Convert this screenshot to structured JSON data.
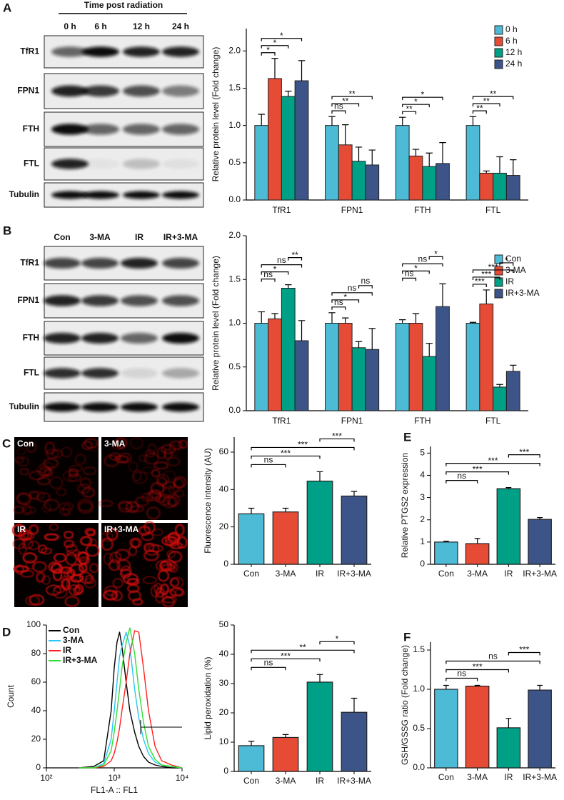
{
  "blots": [
    {
      "letter": "A",
      "header": "Time post radiation",
      "lanes": [
        "0 h",
        "6 h",
        "12 h",
        "24 h"
      ],
      "rows": [
        "TfR1",
        "FPN1",
        "FTH",
        "FTL",
        "Tubulin"
      ]
    },
    {
      "letter": "B",
      "lanes": [
        "Con",
        "3-MA",
        "IR",
        "IR+3-MA"
      ],
      "rows": [
        "TfR1",
        "FPN1",
        "FTH",
        "FTL",
        "Tubulin"
      ]
    }
  ],
  "micrographs": {
    "letter": "C",
    "labels": [
      "Con",
      "3-MA",
      "IR",
      "IR+3-MA"
    ]
  },
  "chart_data": [
    {
      "type": "grouped_bar",
      "ylabel": "Relative protein level (Fold change)",
      "categories": [
        "TfR1",
        "FPN1",
        "FTH",
        "FTL"
      ],
      "series": [
        {
          "name": "0 h",
          "color": "#4dbbd5",
          "values": [
            1.0,
            1.0,
            1.0,
            1.0
          ],
          "errors": [
            0.15,
            0.12,
            0.11,
            0.12
          ]
        },
        {
          "name": "6 h",
          "color": "#e64b35",
          "values": [
            1.63,
            0.74,
            0.59,
            0.36
          ],
          "errors": [
            0.27,
            0.27,
            0.09,
            0.03
          ]
        },
        {
          "name": "12 h",
          "color": "#00a087",
          "values": [
            1.39,
            0.52,
            0.45,
            0.36
          ],
          "errors": [
            0.07,
            0.19,
            0.18,
            0.22
          ]
        },
        {
          "name": "24 h",
          "color": "#3c5488",
          "values": [
            1.6,
            0.47,
            0.49,
            0.33
          ],
          "errors": [
            0.27,
            0.2,
            0.28,
            0.21
          ]
        }
      ],
      "ylim": [
        0,
        2.3
      ],
      "yticks": [
        {
          "value": 0,
          "label": "0.0"
        },
        {
          "value": 0.5,
          "label": "0.5"
        },
        {
          "value": 1,
          "label": "1.0"
        },
        {
          "value": 1.5,
          "label": "1.5"
        },
        {
          "value": 2,
          "label": "2.0"
        }
      ],
      "significance": [
        {
          "group": 0,
          "pair": [
            0,
            1
          ],
          "label": "*"
        },
        {
          "group": 0,
          "pair": [
            0,
            2
          ],
          "label": "*"
        },
        {
          "group": 0,
          "pair": [
            0,
            3
          ],
          "label": "*"
        },
        {
          "group": 1,
          "pair": [
            0,
            1
          ],
          "label": "ns"
        },
        {
          "group": 1,
          "pair": [
            0,
            2
          ],
          "label": "**"
        },
        {
          "group": 1,
          "pair": [
            0,
            3
          ],
          "label": "**"
        },
        {
          "group": 2,
          "pair": [
            0,
            1
          ],
          "label": "**"
        },
        {
          "group": 2,
          "pair": [
            0,
            2
          ],
          "label": "*"
        },
        {
          "group": 2,
          "pair": [
            0,
            3
          ],
          "label": "*"
        },
        {
          "group": 3,
          "pair": [
            0,
            1
          ],
          "label": "**"
        },
        {
          "group": 3,
          "pair": [
            0,
            2
          ],
          "label": "**"
        },
        {
          "group": 3,
          "pair": [
            0,
            3
          ],
          "label": "**"
        }
      ]
    },
    {
      "type": "grouped_bar",
      "ylabel": "Relative protein level (Fold change)",
      "categories": [
        "TfR1",
        "FPN1",
        "FTH",
        "FTL"
      ],
      "series": [
        {
          "name": "Con",
          "color": "#4dbbd5",
          "values": [
            1.0,
            1.0,
            1.0,
            1.0
          ],
          "errors": [
            0.13,
            0.12,
            0.04,
            0.01
          ]
        },
        {
          "name": "3-MA",
          "color": "#e64b35",
          "values": [
            1.05,
            1.0,
            1.0,
            1.22
          ],
          "errors": [
            0.06,
            0.06,
            0.11,
            0.16
          ]
        },
        {
          "name": "IR",
          "color": "#00a087",
          "values": [
            1.4,
            0.72,
            0.62,
            0.27
          ],
          "errors": [
            0.04,
            0.07,
            0.15,
            0.03
          ]
        },
        {
          "name": "IR+3-MA",
          "color": "#3c5488",
          "values": [
            0.8,
            0.7,
            1.19,
            0.45
          ],
          "errors": [
            0.23,
            0.24,
            0.26,
            0.07
          ]
        }
      ],
      "ylim": [
        0,
        2.0
      ],
      "yticks": [
        {
          "value": 0,
          "label": "0.0"
        },
        {
          "value": 0.5,
          "label": "0.5"
        },
        {
          "value": 1,
          "label": "1.0"
        },
        {
          "value": 1.5,
          "label": "1.5"
        },
        {
          "value": 2,
          "label": "2.0"
        }
      ],
      "significance": [
        {
          "group": 0,
          "pair": [
            0,
            1
          ],
          "label": "ns"
        },
        {
          "group": 0,
          "pair": [
            0,
            2
          ],
          "label": "*"
        },
        {
          "group": 0,
          "pair": [
            0,
            3
          ],
          "label": "ns"
        },
        {
          "group": 0,
          "pair": [
            2,
            3
          ],
          "label": "**"
        },
        {
          "group": 1,
          "pair": [
            0,
            1
          ],
          "label": "ns"
        },
        {
          "group": 1,
          "pair": [
            0,
            2
          ],
          "label": "*"
        },
        {
          "group": 1,
          "pair": [
            0,
            3
          ],
          "label": "ns"
        },
        {
          "group": 1,
          "pair": [
            2,
            3
          ],
          "label": "ns"
        },
        {
          "group": 2,
          "pair": [
            0,
            1
          ],
          "label": "ns"
        },
        {
          "group": 2,
          "pair": [
            0,
            2
          ],
          "label": "*"
        },
        {
          "group": 2,
          "pair": [
            0,
            3
          ],
          "label": "ns"
        },
        {
          "group": 2,
          "pair": [
            2,
            3
          ],
          "label": "*"
        },
        {
          "group": 3,
          "pair": [
            0,
            1
          ],
          "label": "***"
        },
        {
          "group": 3,
          "pair": [
            0,
            2
          ],
          "label": "***"
        },
        {
          "group": 3,
          "pair": [
            0,
            3
          ],
          "label": "***"
        },
        {
          "group": 3,
          "pair": [
            2,
            3
          ],
          "label": "*"
        }
      ]
    },
    {
      "type": "bar",
      "ylabel": "Fluorescence intensity (AU)",
      "categories": [
        "Con",
        "3-MA",
        "IR",
        "IR+3-MA"
      ],
      "values": [
        27,
        28,
        44.5,
        36.5
      ],
      "errors": [
        3,
        2,
        5,
        2.5
      ],
      "colors": [
        "#4dbbd5",
        "#e64b35",
        "#00a087",
        "#3c5488"
      ],
      "ylim": [
        0,
        68
      ],
      "yticks": [
        0,
        20,
        40,
        60
      ],
      "significance": [
        {
          "pair": [
            0,
            1
          ],
          "label": "ns"
        },
        {
          "pair": [
            0,
            2
          ],
          "label": "***"
        },
        {
          "pair": [
            0,
            3
          ],
          "label": "***"
        },
        {
          "pair": [
            2,
            3
          ],
          "label": "***"
        }
      ]
    },
    {
      "type": "bar",
      "letter": "E",
      "ylabel": "Relative PTGS2 expression",
      "categories": [
        "Con",
        "3-MA",
        "IR",
        "IR+3-MA"
      ],
      "values": [
        1.0,
        0.93,
        3.4,
        2.02
      ],
      "errors": [
        0.04,
        0.23,
        0.05,
        0.08
      ],
      "colors": [
        "#4dbbd5",
        "#e64b35",
        "#00a087",
        "#3c5488"
      ],
      "ylim": [
        0,
        5.3
      ],
      "yticks": [
        0,
        1,
        2,
        3,
        4,
        5
      ],
      "significance": [
        {
          "pair": [
            0,
            1
          ],
          "label": "ns"
        },
        {
          "pair": [
            0,
            2
          ],
          "label": "***"
        },
        {
          "pair": [
            0,
            3
          ],
          "label": "***"
        },
        {
          "pair": [
            2,
            3
          ],
          "label": "***"
        }
      ]
    },
    {
      "type": "line",
      "letter": "D",
      "xlabel": "FL1-A :: FL1",
      "ylabel": "Count",
      "xscale": "log",
      "xlim": [
        100,
        10000
      ],
      "xticks": [
        {
          "value": 100,
          "label": "10²"
        },
        {
          "value": 1000,
          "label": "10³"
        },
        {
          "value": 10000,
          "label": "10⁴"
        }
      ],
      "ylim": [
        0,
        100
      ],
      "yticks": [
        0,
        20,
        40,
        60,
        80,
        100
      ],
      "x": [
        300,
        500,
        700,
        900,
        1000,
        1100,
        1200,
        1300,
        1500,
        1700,
        2000,
        2300,
        2700,
        3200,
        4000,
        5000,
        7000,
        10000
      ],
      "series": [
        {
          "name": "Con",
          "color": "#000000",
          "values": [
            0,
            1,
            5,
            40,
            70,
            88,
            95,
            85,
            60,
            40,
            25,
            15,
            8,
            4,
            2,
            1,
            0,
            0
          ]
        },
        {
          "name": "3-MA",
          "color": "#29c5f6",
          "values": [
            0,
            0,
            3,
            20,
            40,
            60,
            78,
            85,
            95,
            85,
            55,
            35,
            20,
            10,
            4,
            2,
            1,
            0
          ]
        },
        {
          "name": "IR",
          "color": "#ff2020",
          "values": [
            0,
            0,
            1,
            5,
            10,
            18,
            28,
            40,
            60,
            80,
            96,
            95,
            70,
            40,
            15,
            5,
            2,
            0
          ]
        },
        {
          "name": "IR+3-MA",
          "color": "#33dd33",
          "values": [
            0,
            0,
            2,
            12,
            25,
            40,
            55,
            70,
            88,
            98,
            80,
            55,
            32,
            15,
            6,
            2,
            1,
            0
          ]
        }
      ]
    },
    {
      "type": "bar",
      "ylabel": "Lipid peroxidation (%)",
      "categories": [
        "Con",
        "3-MA",
        "IR",
        "IR+3-MA"
      ],
      "values": [
        8.8,
        11.6,
        30.5,
        20.2
      ],
      "errors": [
        1.5,
        1.0,
        2.6,
        4.8
      ],
      "colors": [
        "#4dbbd5",
        "#e64b35",
        "#00a087",
        "#3c5488"
      ],
      "ylim": [
        0,
        50
      ],
      "yticks": [
        0,
        10,
        20,
        30,
        40,
        50
      ],
      "significance": [
        {
          "pair": [
            0,
            1
          ],
          "label": "ns"
        },
        {
          "pair": [
            0,
            2
          ],
          "label": "***"
        },
        {
          "pair": [
            0,
            3
          ],
          "label": "**"
        },
        {
          "pair": [
            2,
            3
          ],
          "label": "*"
        }
      ]
    },
    {
      "type": "bar",
      "letter": "F",
      "ylabel": "GSH/GSSG ratio (Fold change)",
      "categories": [
        "Con",
        "3-MA",
        "IR",
        "IR+3-MA"
      ],
      "values": [
        1.0,
        1.04,
        0.51,
        0.99
      ],
      "errors": [
        0.05,
        0.01,
        0.12,
        0.06
      ],
      "colors": [
        "#4dbbd5",
        "#e64b35",
        "#00a087",
        "#3c5488"
      ],
      "ylim": [
        0,
        1.6
      ],
      "yticks": [
        {
          "value": 0,
          "label": "0.0"
        },
        {
          "value": 0.5,
          "label": "0.5"
        },
        {
          "value": 1,
          "label": "1.0"
        },
        {
          "value": 1.5,
          "label": "1.5"
        }
      ],
      "significance": [
        {
          "pair": [
            0,
            1
          ],
          "label": "ns"
        },
        {
          "pair": [
            0,
            2
          ],
          "label": "***"
        },
        {
          "pair": [
            0,
            3
          ],
          "label": "ns"
        },
        {
          "pair": [
            2,
            3
          ],
          "label": "***"
        }
      ]
    }
  ]
}
